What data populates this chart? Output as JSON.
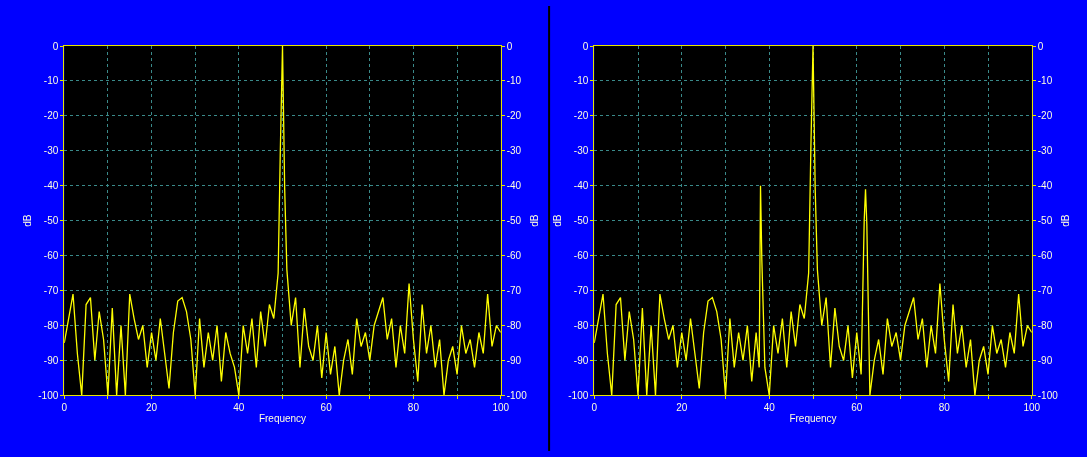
{
  "chart_data": [
    {
      "type": "line",
      "xlabel": "Frequency",
      "ylabel": "dB",
      "y2label": "dB",
      "x": [
        0,
        1,
        2,
        3,
        4,
        5,
        6,
        7,
        8,
        9,
        10,
        11,
        12,
        13,
        14,
        15,
        16,
        17,
        18,
        19,
        20,
        21,
        22,
        23,
        24,
        25,
        26,
        27,
        28,
        29,
        30,
        31,
        32,
        33,
        34,
        35,
        36,
        37,
        38,
        39,
        40,
        41,
        42,
        43,
        44,
        45,
        46,
        47,
        48,
        49,
        49.5,
        50,
        50.5,
        51,
        52,
        53,
        54,
        55,
        56,
        57,
        58,
        59,
        60,
        61,
        62,
        63,
        64,
        65,
        66,
        67,
        68,
        69,
        70,
        71,
        72,
        73,
        74,
        75,
        76,
        77,
        78,
        79,
        80,
        81,
        82,
        83,
        84,
        85,
        86,
        87,
        88,
        89,
        90,
        91,
        92,
        93,
        94,
        95,
        96,
        97,
        98,
        99,
        100
      ],
      "series": [
        {
          "color": "#ffff00",
          "values": [
            -85,
            -78,
            -71,
            -88,
            -100,
            -74,
            -72,
            -90,
            -76,
            -84,
            -100,
            -75,
            -100,
            -80,
            -100,
            -71,
            -78,
            -84,
            -80,
            -92,
            -82,
            -90,
            -78,
            -88,
            -98,
            -82,
            -73,
            -72,
            -76,
            -84,
            -100,
            -78,
            -92,
            -82,
            -90,
            -80,
            -96,
            -82,
            -88,
            -92,
            -100,
            -80,
            -88,
            -78,
            -92,
            -76,
            -86,
            -74,
            -78,
            -65,
            -30,
            0,
            -41,
            -64,
            -80,
            -72,
            -92,
            -75,
            -86,
            -90,
            -80,
            -95,
            -82,
            -94,
            -86,
            -100,
            -90,
            -84,
            -94,
            -78,
            -86,
            -82,
            -90,
            -80,
            -76,
            -72,
            -84,
            -78,
            -92,
            -80,
            -88,
            -68,
            -84,
            -96,
            -74,
            -88,
            -80,
            -92,
            -84,
            -100,
            -90,
            -86,
            -94,
            -80,
            -88,
            -84,
            -92,
            -82,
            -88,
            -71,
            -86,
            -80,
            -82
          ]
        }
      ],
      "xlim": [
        0,
        100
      ],
      "xticks": [
        0,
        {
          "value": 10,
          "label": null
        },
        20,
        {
          "value": 30,
          "label": null
        },
        40,
        {
          "value": 50,
          "label": null
        },
        60,
        {
          "value": 70,
          "label": null
        },
        80,
        {
          "value": 90,
          "label": null
        },
        100
      ],
      "ylim": [
        -100,
        0
      ],
      "yticks": [
        -100,
        -90,
        -80,
        -70,
        -60,
        -50,
        -40,
        -30,
        -20,
        -10,
        0
      ],
      "y2lim": [
        -100,
        0
      ],
      "y2ticks": [
        -100,
        -90,
        -80,
        -70,
        -60,
        -50,
        -40,
        -30,
        -20,
        -10,
        0
      ],
      "grid": true
    },
    {
      "type": "line",
      "xlabel": "Frequency",
      "ylabel": "dB",
      "y2label": "dB",
      "x": [
        0,
        1,
        2,
        3,
        4,
        5,
        6,
        7,
        8,
        9,
        10,
        11,
        12,
        13,
        14,
        15,
        16,
        17,
        18,
        19,
        20,
        21,
        22,
        23,
        24,
        25,
        26,
        27,
        28,
        29,
        30,
        31,
        32,
        33,
        34,
        35,
        36,
        37,
        37.7,
        38,
        38.3,
        39,
        40,
        41,
        42,
        43,
        44,
        45,
        46,
        47,
        48,
        49,
        49.5,
        50,
        50.5,
        51,
        52,
        53,
        54,
        55,
        56,
        57,
        58,
        59,
        60,
        61,
        61.7,
        62,
        62.3,
        63,
        64,
        65,
        66,
        67,
        68,
        69,
        70,
        71,
        72,
        73,
        74,
        75,
        76,
        77,
        78,
        79,
        80,
        81,
        82,
        83,
        84,
        85,
        86,
        87,
        88,
        89,
        90,
        91,
        92,
        93,
        94,
        95,
        96,
        97,
        98,
        99,
        100
      ],
      "series": [
        {
          "color": "#ffff00",
          "values": [
            -85,
            -78,
            -71,
            -88,
            -100,
            -74,
            -72,
            -90,
            -76,
            -84,
            -100,
            -75,
            -100,
            -80,
            -100,
            -71,
            -78,
            -84,
            -80,
            -92,
            -82,
            -90,
            -78,
            -88,
            -98,
            -82,
            -73,
            -72,
            -76,
            -84,
            -100,
            -78,
            -92,
            -82,
            -90,
            -80,
            -96,
            -82,
            -92,
            -40,
            -61,
            -92,
            -100,
            -80,
            -88,
            -78,
            -92,
            -76,
            -86,
            -74,
            -78,
            -65,
            -30,
            0,
            -41,
            -64,
            -80,
            -72,
            -92,
            -75,
            -86,
            -90,
            -80,
            -95,
            -82,
            -94,
            -50,
            -41,
            -51,
            -100,
            -90,
            -84,
            -94,
            -78,
            -86,
            -82,
            -90,
            -80,
            -76,
            -72,
            -84,
            -78,
            -92,
            -80,
            -88,
            -68,
            -84,
            -96,
            -74,
            -88,
            -80,
            -92,
            -84,
            -100,
            -90,
            -86,
            -94,
            -80,
            -88,
            -84,
            -92,
            -82,
            -88,
            -71,
            -86,
            -80,
            -82
          ]
        }
      ],
      "xlim": [
        0,
        100
      ],
      "xticks": [
        0,
        {
          "value": 10,
          "label": null
        },
        20,
        {
          "value": 30,
          "label": null
        },
        40,
        {
          "value": 50,
          "label": null
        },
        60,
        {
          "value": 70,
          "label": null
        },
        80,
        {
          "value": 90,
          "label": null
        },
        100
      ],
      "ylim": [
        -100,
        0
      ],
      "yticks": [
        -100,
        -90,
        -80,
        -70,
        -60,
        -50,
        -40,
        -30,
        -20,
        -10,
        0
      ],
      "y2lim": [
        -100,
        0
      ],
      "y2ticks": [
        -100,
        -90,
        -80,
        -70,
        -60,
        -50,
        -40,
        -30,
        -20,
        -10,
        0
      ],
      "grid": true
    }
  ]
}
